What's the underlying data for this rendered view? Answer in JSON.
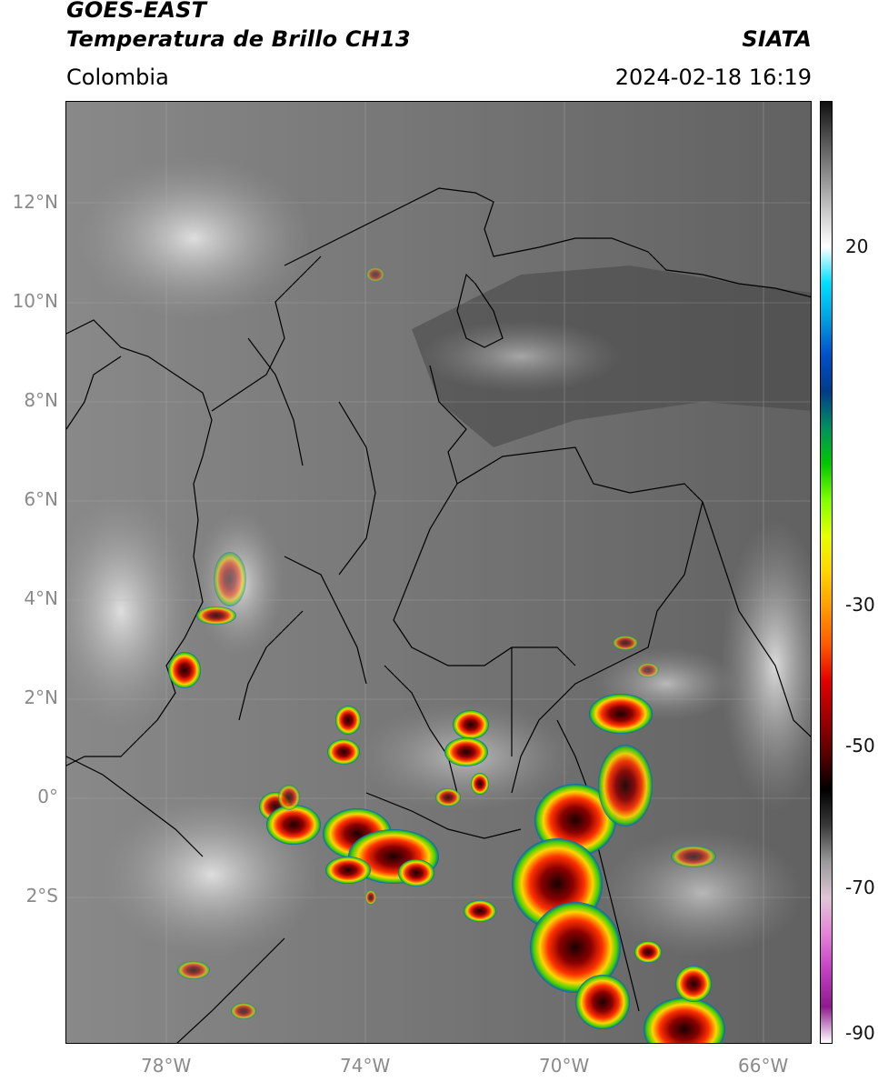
{
  "header": {
    "satellite": "GOES-EAST",
    "product": "Temperatura de Brillo CH13",
    "region": "Colombia",
    "agency": "SIATA",
    "datetime": "2024-02-18 16:19"
  },
  "axes": {
    "lat_labels": [
      "12°N",
      "10°N",
      "8°N",
      "6°N",
      "4°N",
      "2°N",
      "0°",
      "2°S"
    ],
    "lon_labels": [
      "78°W",
      "74°W",
      "70°W",
      "66°W"
    ]
  },
  "colorbar": {
    "ticks": [
      "20",
      "-30",
      "-50",
      "-70",
      "-90"
    ],
    "colors": [
      "#ffffff",
      "#8e1a8e",
      "#c23fc2",
      "#e582d9",
      "#e0c6d6",
      "#9a9a9a",
      "#3a3a3a",
      "#000000",
      "#5a0000",
      "#a00000",
      "#e20000",
      "#ff5a00",
      "#ff9a00",
      "#ffd400",
      "#e8ff00",
      "#80ff00",
      "#00c800",
      "#009060",
      "#003c8a",
      "#0050c8",
      "#00a0e0",
      "#00e0ff",
      "#ffffff",
      "#c8c8c8",
      "#8c8c8c",
      "#505050",
      "#101010"
    ]
  }
}
